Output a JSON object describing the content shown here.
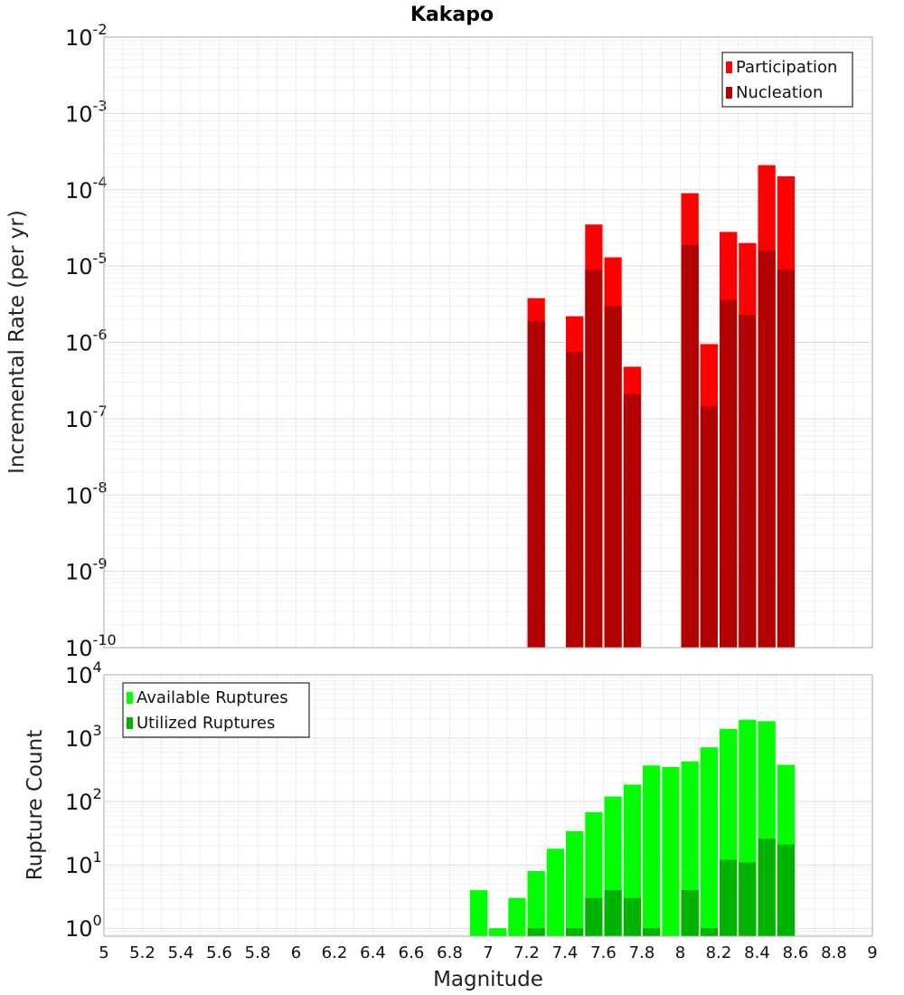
{
  "chart_data": [
    {
      "type": "bar",
      "title": "Kakapo",
      "xlabel": "",
      "ylabel": "Incremental Rate (per yr)",
      "yscale": "log",
      "xlim": [
        5,
        9
      ],
      "ylim": [
        1e-10,
        0.01
      ],
      "y_tick_exponents": [
        -10,
        -9,
        -8,
        -7,
        -6,
        -5,
        -4,
        -3,
        -2
      ],
      "grid": true,
      "legend_position": "top-right",
      "bar_width": 0.1,
      "series": [
        {
          "name": "Participation",
          "color": "#ff0000",
          "x": [
            7.25,
            7.45,
            7.55,
            7.65,
            7.75,
            8.05,
            8.15,
            8.25,
            8.35,
            8.45,
            8.55
          ],
          "values": [
            3.8e-06,
            2.2e-06,
            3.5e-05,
            1.3e-05,
            4.8e-07,
            9e-05,
            9.5e-07,
            2.8e-05,
            2e-05,
            0.00021,
            0.00015
          ]
        },
        {
          "name": "Nucleation",
          "color": "#b30000",
          "x": [
            7.25,
            7.45,
            7.55,
            7.65,
            7.75,
            8.05,
            8.15,
            8.25,
            8.35,
            8.45,
            8.55
          ],
          "values": [
            1.9e-06,
            7.5e-07,
            9e-06,
            3e-06,
            2.1e-07,
            1.9e-05,
            1.45e-07,
            3.6e-06,
            2.3e-06,
            1.6e-05,
            9e-06
          ]
        }
      ]
    },
    {
      "type": "bar",
      "title": "",
      "xlabel": "Magnitude",
      "ylabel": "Rupture Count",
      "yscale": "log",
      "xlim": [
        5,
        9
      ],
      "ylim": [
        0.75,
        10000
      ],
      "y_tick_exponents": [
        0,
        1,
        2,
        3,
        4
      ],
      "x_ticks": [
        "5",
        "5.2",
        "5.4",
        "5.6",
        "5.8",
        "6",
        "6.2",
        "6.4",
        "6.6",
        "6.8",
        "7",
        "7.2",
        "7.4",
        "7.6",
        "7.8",
        "8",
        "8.2",
        "8.4",
        "8.6",
        "8.8",
        "9"
      ],
      "grid": true,
      "legend_position": "top-left",
      "bar_width": 0.1,
      "series": [
        {
          "name": "Available Ruptures",
          "color": "#00ff00",
          "x": [
            6.95,
            7.05,
            7.15,
            7.25,
            7.35,
            7.45,
            7.55,
            7.65,
            7.75,
            7.85,
            7.95,
            8.05,
            8.15,
            8.25,
            8.35,
            8.45,
            8.55
          ],
          "values": [
            4,
            1,
            3,
            8,
            18,
            34,
            68,
            120,
            185,
            370,
            350,
            430,
            720,
            1400,
            1950,
            1850,
            380
          ]
        },
        {
          "name": "Utilized Ruptures",
          "color": "#00b300",
          "x": [
            7.25,
            7.45,
            7.55,
            7.65,
            7.75,
            7.85,
            8.05,
            8.15,
            8.25,
            8.35,
            8.45,
            8.55
          ],
          "values": [
            1,
            1,
            3,
            4,
            3,
            1,
            4,
            1,
            12,
            11,
            26,
            21
          ]
        }
      ]
    }
  ]
}
